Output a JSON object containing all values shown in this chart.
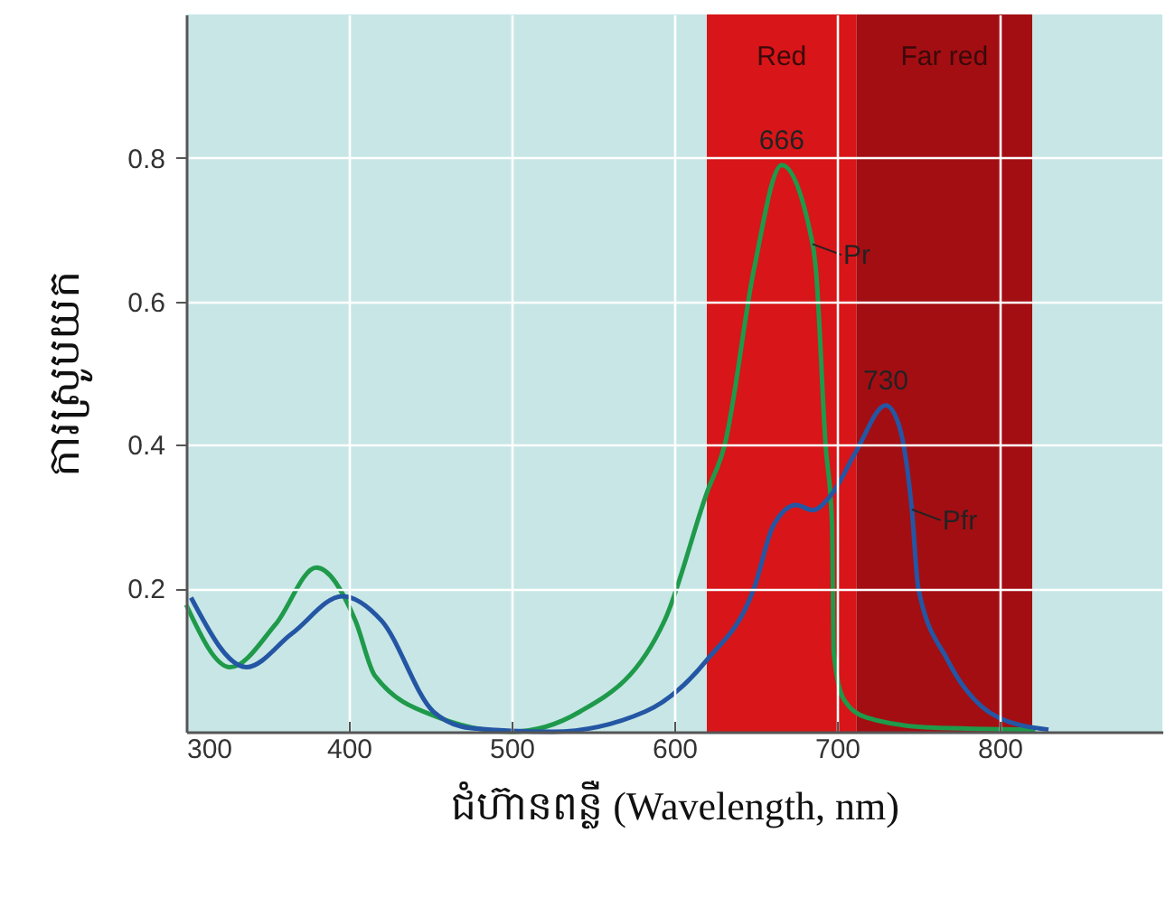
{
  "chart_data": {
    "type": "line",
    "xlabel": "ជំហ៊ានពន្លឺ (Wavelength, nm)",
    "ylabel": "ការស្រូបយក",
    "xlim": [
      300,
      900
    ],
    "ylim": [
      0,
      1
    ],
    "xticks": [
      300,
      400,
      500,
      600,
      700,
      800
    ],
    "yticks": [
      0.2,
      0.4,
      0.6,
      0.8
    ],
    "grid": true,
    "bands": [
      {
        "axis": "x",
        "from": 620,
        "to": 712,
        "label": "Red",
        "color": "#d81518"
      },
      {
        "axis": "x",
        "from": 712,
        "to": 820,
        "label": "Far red",
        "color": "#a30e13"
      }
    ],
    "series": [
      {
        "color": "#1e9a4a",
        "x": [
          300,
          327,
          355,
          380,
          404,
          416,
          455,
          500,
          542,
          594,
          620,
          631,
          649,
          666,
          685,
          687,
          693,
          697,
          698,
          704,
          718,
          757,
          822
        ],
        "values": [
          0.177,
          0.09,
          0.15,
          0.229,
          0.155,
          0.078,
          0.02,
          0.0,
          0.028,
          0.155,
          0.333,
          0.4,
          0.645,
          0.79,
          0.68,
          0.645,
          0.4,
          0.29,
          0.11,
          0.046,
          0.02,
          0.006,
          0.003
        ]
      },
      {
        "color": "#2456a4",
        "x": [
          303,
          337,
          365,
          396,
          420,
          452,
          475,
          525,
          582,
          620,
          649,
          661,
          675,
          685,
          697,
          712,
          730,
          738,
          746,
          750,
          768,
          799,
          830
        ],
        "values": [
          0.187,
          0.09,
          0.137,
          0.189,
          0.155,
          0.028,
          0.005,
          0.0,
          0.028,
          0.1,
          0.2,
          0.288,
          0.316,
          0.309,
          0.332,
          0.392,
          0.455,
          0.428,
          0.31,
          0.2,
          0.1,
          0.02,
          0.003
        ]
      }
    ],
    "annotations": [
      {
        "text": "666",
        "x": 666,
        "y": 0.79
      },
      {
        "text": "730",
        "x": 730,
        "y": 0.455
      },
      {
        "text": "Pr",
        "x": 685,
        "y": 0.68
      },
      {
        "text": "Pfr",
        "x": 746,
        "y": 0.31
      }
    ]
  }
}
